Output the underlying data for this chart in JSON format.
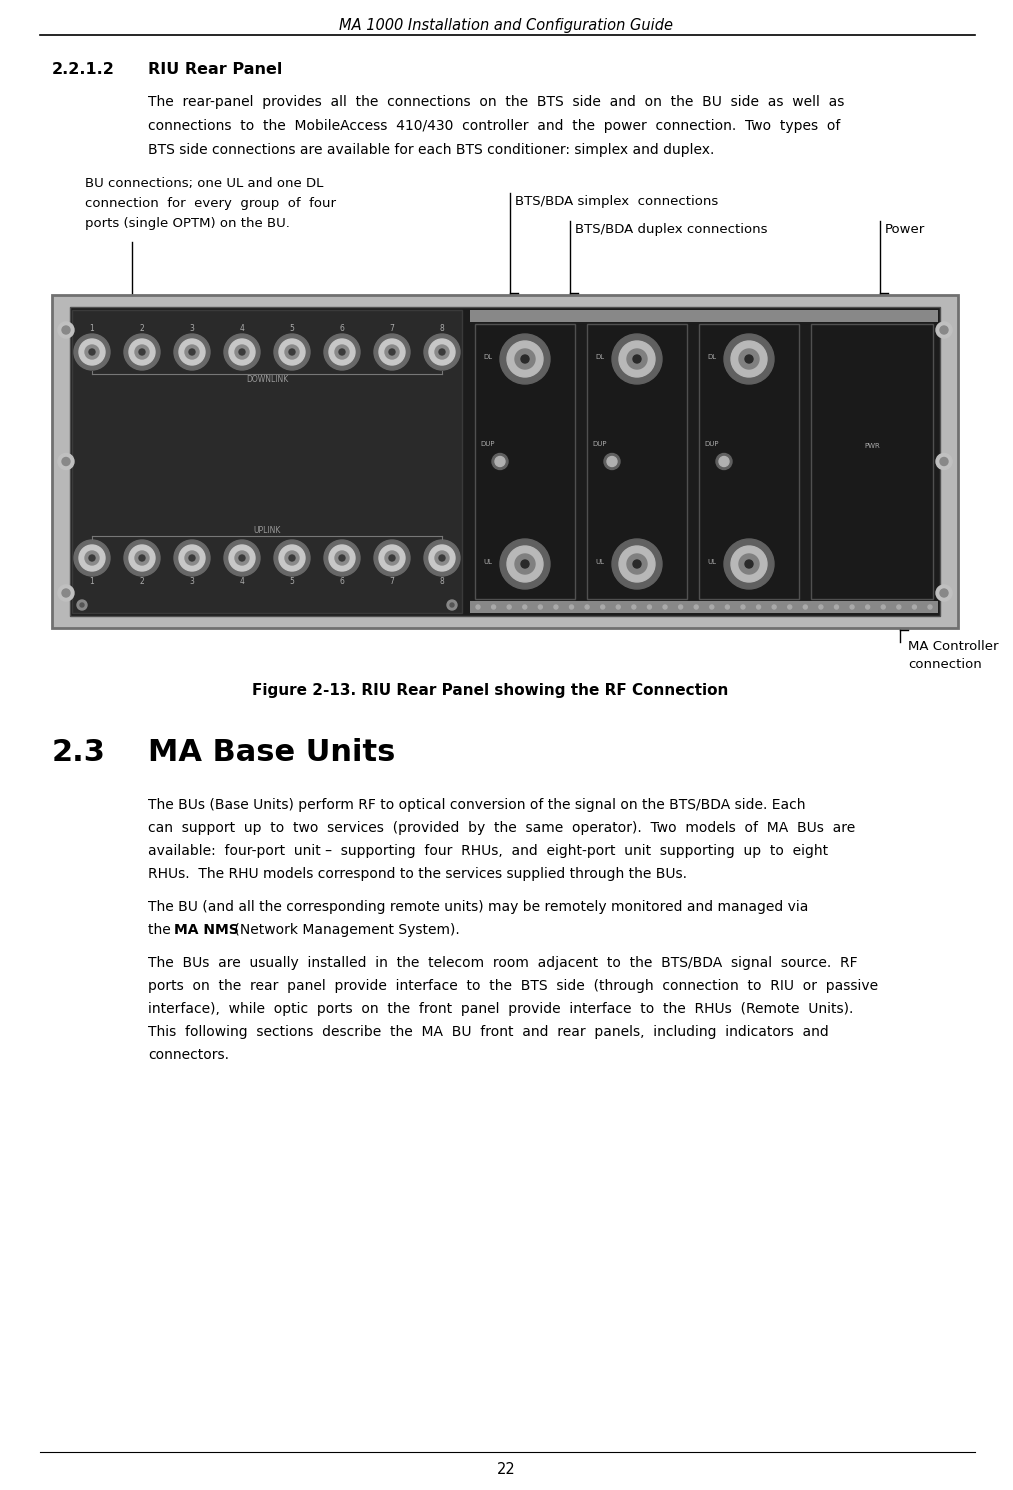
{
  "page_title": "MA 1000 Installation and Configuration Guide",
  "page_number": "22",
  "background_color": "#ffffff",
  "section_221_2_number": "2.2.1.2",
  "section_221_2_title": "RIU Rear Panel",
  "body_line1": "The  rear-panel  provides  all  the  connections  on  the  BTS  side  and  on  the  BU  side  as  well  as",
  "body_line2": "connections  to  the  MobileAccess  410/430  controller  and  the  power  connection.  Two  types  of",
  "body_line3": "BTS side connections are available for each BTS conditioner: simplex and duplex.",
  "figure_caption": "Figure 2-13. RIU Rear Panel showing the RF Connection",
  "ann_bu": [
    "BU connections; one UL and one DL",
    "connection  for  every  group  of  four",
    "ports (single OPTM) on the BU."
  ],
  "ann_simplex": "BTS/BDA simplex  connections",
  "ann_duplex": "BTS/BDA duplex connections",
  "ann_power": "Power",
  "ann_ma": [
    "MA Controller",
    "connection"
  ],
  "sec23_num": "2.3",
  "sec23_title": "MA Base Units",
  "p1_l1": "The BUs (Base Units) perform RF to optical conversion of the signal on the BTS/BDA side. Each",
  "p1_l2": "can  support  up  to  two  services  (provided  by  the  same  operator).  Two  models  of  MA  BUs  are",
  "p1_l3": "available:  four-port  unit –  supporting  four  RHUs,  and  eight-port  unit  supporting  up  to  eight",
  "p1_l4": "RHUs.  The RHU models correspond to the services supplied through the BUs.",
  "p2_l1": "The BU (and all the corresponding remote units) may be remotely monitored and managed via",
  "p2_l2_pre": "the ",
  "p2_l2_bold": "MA NMS",
  "p2_l2_post": " (Network Management System).",
  "p3_l1": "The  BUs  are  usually  installed  in  the  telecom  room  adjacent  to  the  BTS/BDA  signal  source.  RF",
  "p3_l2": "ports  on  the  rear  panel  provide  interface  to  the  BTS  side  (through  connection  to  RIU  or  passive",
  "p3_l3": "interface),  while  optic  ports  on  the  front  panel  provide  interface  to  the  RHUs  (Remote  Units).",
  "p3_l4": "This  following  sections  describe  the  MA  BU  front  and  rear  panels,  including  indicators  and",
  "p3_l5": "connectors.",
  "panel": {
    "outer_color": "#b0b0b0",
    "frame_color": "#909090",
    "dark_bg": "#1e1e1e",
    "bu_panel_color": "#2d2d2d",
    "bts_panel_color": "#1a1a1a",
    "module_color": "#252525",
    "circle_outer": "#707070",
    "circle_mid": "#c0c0c0",
    "circle_inner": "#909090",
    "circle_center": "#4a4a4a",
    "label_color": "#aaaaaa",
    "strip_color": "#888888"
  }
}
